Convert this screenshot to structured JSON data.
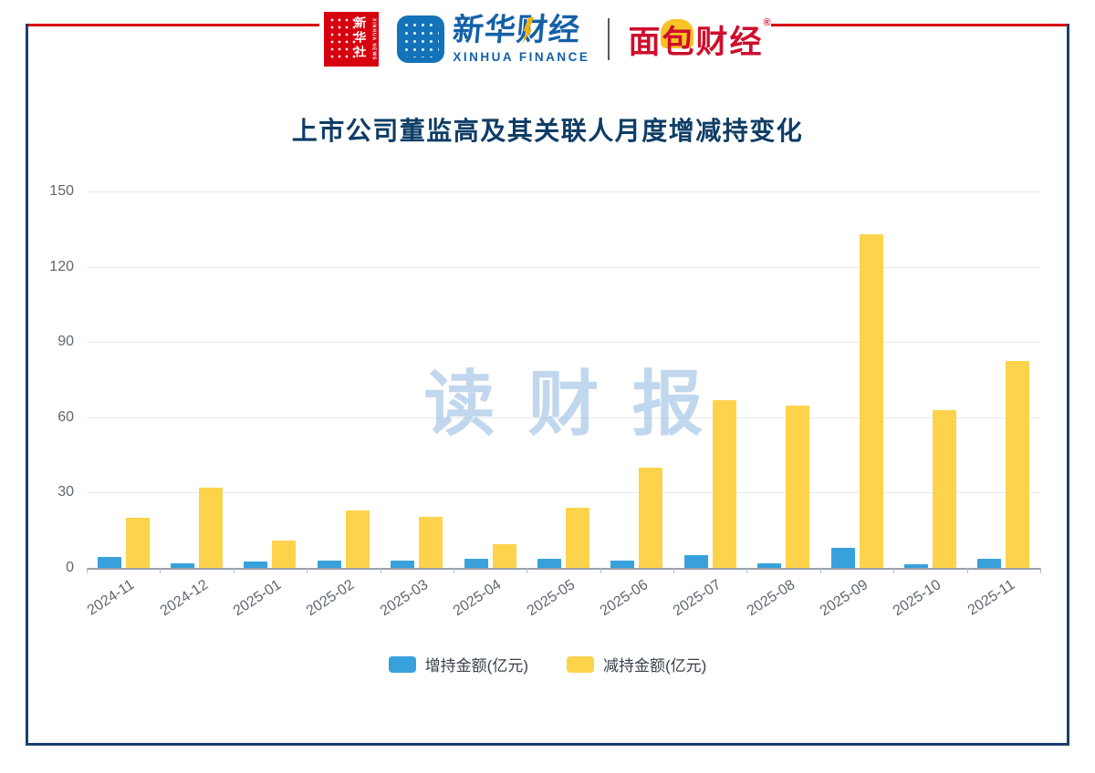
{
  "header": {
    "xinhua_news": {
      "name": "新华社",
      "sub": "XINHUA NEWS"
    },
    "xinhua_finance": {
      "name": "新华财经",
      "sub": "XINHUA FINANCE"
    },
    "bread_finance": {
      "name": "面包财经",
      "reg": "®"
    }
  },
  "watermark": "读财报",
  "chart_data": {
    "type": "bar",
    "title": "上市公司董监高及其关联人月度增减持变化",
    "categories": [
      "2024-11",
      "2024-12",
      "2025-01",
      "2025-02",
      "2025-03",
      "2025-04",
      "2025-05",
      "2025-06",
      "2025-07",
      "2025-08",
      "2025-09",
      "2025-10",
      "2025-11"
    ],
    "series": [
      {
        "name": "增持金额(亿元)",
        "color": "#38A1DB",
        "values": [
          4.5,
          2,
          2.5,
          3,
          3,
          3.5,
          3.5,
          3,
          5,
          2,
          8,
          1.5,
          3.5
        ]
      },
      {
        "name": "减持金额(亿元)",
        "color": "#FCD34B",
        "values": [
          20,
          32,
          11,
          23,
          20.5,
          9.5,
          24,
          40,
          67,
          64.5,
          133,
          63,
          82.5
        ]
      }
    ],
    "xlabel": "",
    "ylabel": "",
    "ylim": [
      0,
      150
    ],
    "yticks": [
      0,
      30,
      60,
      90,
      120,
      150
    ],
    "grid": true,
    "legend_position": "bottom"
  },
  "colors": {
    "accent_red": "#D7000F",
    "frame_navy": "#1B3E6E",
    "title_navy": "#0F3D66",
    "watermark_blue": "#8FB8DF",
    "bar_blue": "#38A1DB",
    "bar_yellow": "#FCD34B"
  }
}
